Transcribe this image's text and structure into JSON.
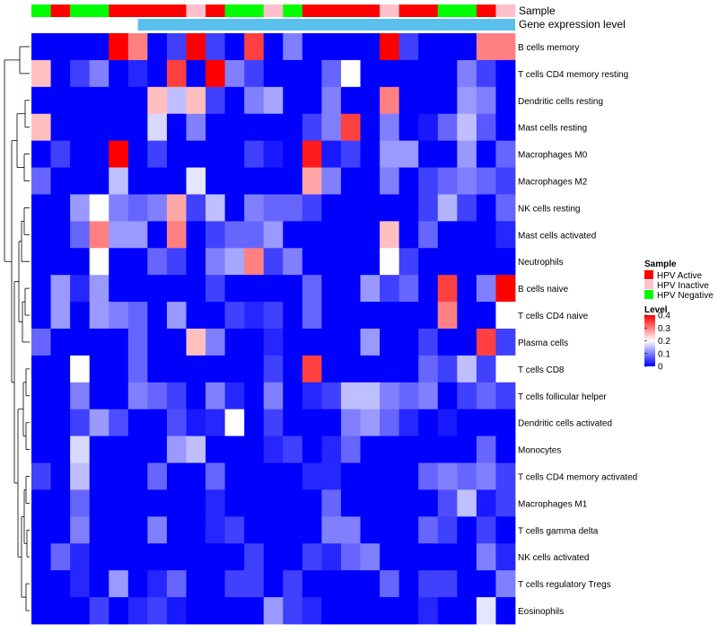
{
  "chart_data": {
    "type": "heatmap",
    "annotation_track_labels": [
      "Sample",
      "Gene expression level"
    ],
    "sample_groups": [
      "HPV Negative",
      "HPV Active",
      "HPV Negative",
      "HPV Negative",
      "HPV Active",
      "HPV Active",
      "HPV Active",
      "HPV Active",
      "HPV Inactive",
      "HPV Active",
      "HPV Negative",
      "HPV Negative",
      "HPV Inactive",
      "HPV Negative",
      "HPV Active",
      "HPV Active",
      "HPV Active",
      "HPV Active",
      "HPV Inactive",
      "HPV Active",
      "HPV Active",
      "HPV Negative",
      "HPV Negative",
      "HPV Active",
      "HPV Inactive"
    ],
    "rows": [
      "B cells memory",
      "T cells CD4 memory resting",
      "Dendritic cells resting",
      "Mast cells resting",
      "Macrophages M0",
      "Macrophages M2",
      "NK cells resting",
      "Mast cells activated",
      "Neutrophils",
      "B cells naive",
      "T cells CD4 naive",
      "Plasma cells",
      "T cells CD8",
      "T cells follicular helper",
      "Dendritic cells activated",
      "Monocytes",
      "T cells CD4 memory activated",
      "Macrophages M1",
      "T cells gamma delta",
      "NK cells activated",
      "T cells regulatory  Tregs",
      "Eosinophils"
    ],
    "values": [
      [
        0,
        0,
        0,
        0,
        0.4,
        0.3,
        0,
        0.05,
        0.4,
        0.05,
        0,
        0.35,
        0,
        0.1,
        0,
        0,
        0,
        0,
        0.4,
        0.05,
        0,
        0,
        0,
        0.3,
        0.3
      ],
      [
        0.25,
        0,
        0.05,
        0.1,
        0,
        0.03,
        0,
        0.35,
        0,
        0.4,
        0.1,
        0.05,
        0,
        0,
        0,
        0.08,
        0.2,
        0,
        0,
        0,
        0,
        0,
        0.1,
        0.05,
        0
      ],
      [
        0,
        0,
        0,
        0,
        0,
        0,
        0.25,
        0.15,
        0.25,
        0.05,
        0,
        0.1,
        0.13,
        0,
        0,
        0.1,
        0,
        0,
        0.3,
        0,
        0,
        0,
        0.12,
        0.1,
        0
      ],
      [
        0.25,
        0,
        0,
        0,
        0,
        0,
        0.17,
        0,
        0.1,
        0,
        0,
        0,
        0,
        0,
        0.05,
        0.1,
        0.35,
        0,
        0.1,
        0,
        0.02,
        0.08,
        0.15,
        0.07,
        0
      ],
      [
        0,
        0.05,
        0,
        0,
        0.4,
        0,
        0.05,
        0,
        0,
        0,
        0,
        0.05,
        0.02,
        0,
        0.38,
        0.02,
        0.05,
        0,
        0.12,
        0.12,
        0,
        0,
        0.12,
        0,
        0.08
      ],
      [
        0.08,
        0,
        0,
        0,
        0.15,
        0,
        0,
        0,
        0.18,
        0,
        0,
        0,
        0,
        0,
        0.27,
        0.1,
        0,
        0,
        0.1,
        0,
        0.05,
        0.08,
        0.1,
        0.08,
        0.05
      ],
      [
        0,
        0,
        0.12,
        0.2,
        0.1,
        0.08,
        0.1,
        0.27,
        0.05,
        0.15,
        0,
        0.1,
        0.08,
        0.08,
        0.05,
        0,
        0,
        0,
        0,
        0,
        0.05,
        0.14,
        0.05,
        0,
        0.08
      ],
      [
        0,
        0,
        0.08,
        0.3,
        0.12,
        0.12,
        0,
        0.3,
        0,
        0.05,
        0.08,
        0.08,
        0.12,
        0,
        0,
        0,
        0,
        0,
        0.25,
        0,
        0.08,
        0,
        0,
        0,
        0.03
      ],
      [
        0,
        0,
        0,
        0.2,
        0,
        0,
        0.08,
        0.05,
        0,
        0.1,
        0.13,
        0.3,
        0.05,
        0.1,
        0,
        0,
        0,
        0,
        0.2,
        0.05,
        0,
        0,
        0,
        0,
        0
      ],
      [
        0,
        0.12,
        0.03,
        0.12,
        0,
        0,
        0,
        0,
        0,
        0.05,
        0,
        0,
        0,
        0,
        0.08,
        0,
        0,
        0.12,
        0.05,
        0.08,
        0,
        0.35,
        0,
        0.1,
        0.4
      ],
      [
        0,
        0.12,
        0,
        0.12,
        0.1,
        0.08,
        0,
        0.12,
        0,
        0,
        0.05,
        0.03,
        0.05,
        0,
        0.08,
        0,
        0,
        0,
        0,
        0,
        0,
        0.3,
        0,
        0,
        0.2
      ],
      [
        0.08,
        0,
        0,
        0,
        0,
        0.08,
        0,
        0,
        0.25,
        0.1,
        0,
        0,
        0.03,
        0,
        0,
        0,
        0,
        0.12,
        0,
        0,
        0.05,
        0,
        0,
        0.35,
        0.05
      ],
      [
        0,
        0,
        0.2,
        0,
        0,
        0.08,
        0,
        0,
        0,
        0,
        0,
        0,
        0.05,
        0,
        0.35,
        0,
        0,
        0,
        0,
        0,
        0.08,
        0.05,
        0.15,
        0.05,
        0.2
      ],
      [
        0,
        0,
        0.1,
        0,
        0,
        0.1,
        0.08,
        0.05,
        0,
        0.1,
        0.03,
        0,
        0.1,
        0,
        0.03,
        0.05,
        0.15,
        0.15,
        0.1,
        0.08,
        0.1,
        0,
        0.05,
        0.08,
        0.05
      ],
      [
        0,
        0,
        0.05,
        0.12,
        0.06,
        0,
        0,
        0.06,
        0.02,
        0.03,
        0.2,
        0,
        0.05,
        0,
        0,
        0,
        0.1,
        0.12,
        0.08,
        0.03,
        0,
        0.02,
        0,
        0,
        0
      ],
      [
        0,
        0,
        0.17,
        0,
        0,
        0,
        0,
        0.12,
        0.15,
        0,
        0,
        0,
        0.03,
        0.05,
        0,
        0.03,
        0.08,
        0,
        0,
        0,
        0,
        0,
        0,
        0.08,
        0
      ],
      [
        0.05,
        0,
        0.15,
        0,
        0,
        0,
        0.08,
        0,
        0,
        0.08,
        0,
        0,
        0,
        0,
        0.03,
        0.03,
        0,
        0,
        0,
        0,
        0.08,
        0.1,
        0.08,
        0.1,
        0.05
      ],
      [
        0,
        0,
        0.08,
        0,
        0,
        0,
        0,
        0,
        0,
        0.03,
        0,
        0,
        0,
        0,
        0,
        0.08,
        0,
        0,
        0,
        0,
        0,
        0.06,
        0.15,
        0.02,
        0.05
      ],
      [
        0,
        0,
        0.1,
        0,
        0,
        0,
        0.1,
        0,
        0,
        0.03,
        0.05,
        0,
        0,
        0,
        0,
        0.1,
        0.1,
        0,
        0,
        0,
        0.08,
        0.05,
        0,
        0.05,
        0
      ],
      [
        0,
        0.08,
        0.03,
        0,
        0,
        0,
        0,
        0,
        0,
        0,
        0,
        0.05,
        0,
        0,
        0.05,
        0.03,
        0.08,
        0.1,
        0,
        0,
        0,
        0,
        0,
        0.1,
        0.03
      ],
      [
        0,
        0,
        0.03,
        0,
        0.12,
        0,
        0.03,
        0.08,
        0,
        0,
        0.05,
        0.05,
        0,
        0.05,
        0,
        0,
        0,
        0,
        0.08,
        0,
        0.05,
        0.05,
        0,
        0,
        0.1
      ],
      [
        0,
        0,
        0,
        0.05,
        0,
        0.03,
        0.05,
        0.02,
        0,
        0,
        0,
        0,
        0.12,
        0.05,
        0.03,
        0,
        0,
        0,
        0,
        0,
        0.03,
        0,
        0,
        0.18,
        0
      ]
    ],
    "legend": {
      "sample": {
        "title": "Sample",
        "entries": [
          {
            "label": "HPV Active",
            "color": "#ff0000"
          },
          {
            "label": "HPV Inactive",
            "color": "#ffc0cb"
          },
          {
            "label": "HPV Negative",
            "color": "#00ff00"
          }
        ]
      },
      "level": {
        "title": "Level",
        "ticks": [
          0.4,
          0.3,
          0.2,
          0.1,
          0
        ],
        "tick_labels": [
          "0.4",
          "0.3",
          "0.2",
          "0.1",
          "0"
        ],
        "range": [
          0,
          0.4
        ],
        "colors": {
          "low": "#0000ff",
          "mid": "#ffffff",
          "high": "#ff0000"
        }
      }
    },
    "expression_level_bar_color": "#5bc0eb",
    "dendrogram": "row clustering (left)"
  }
}
